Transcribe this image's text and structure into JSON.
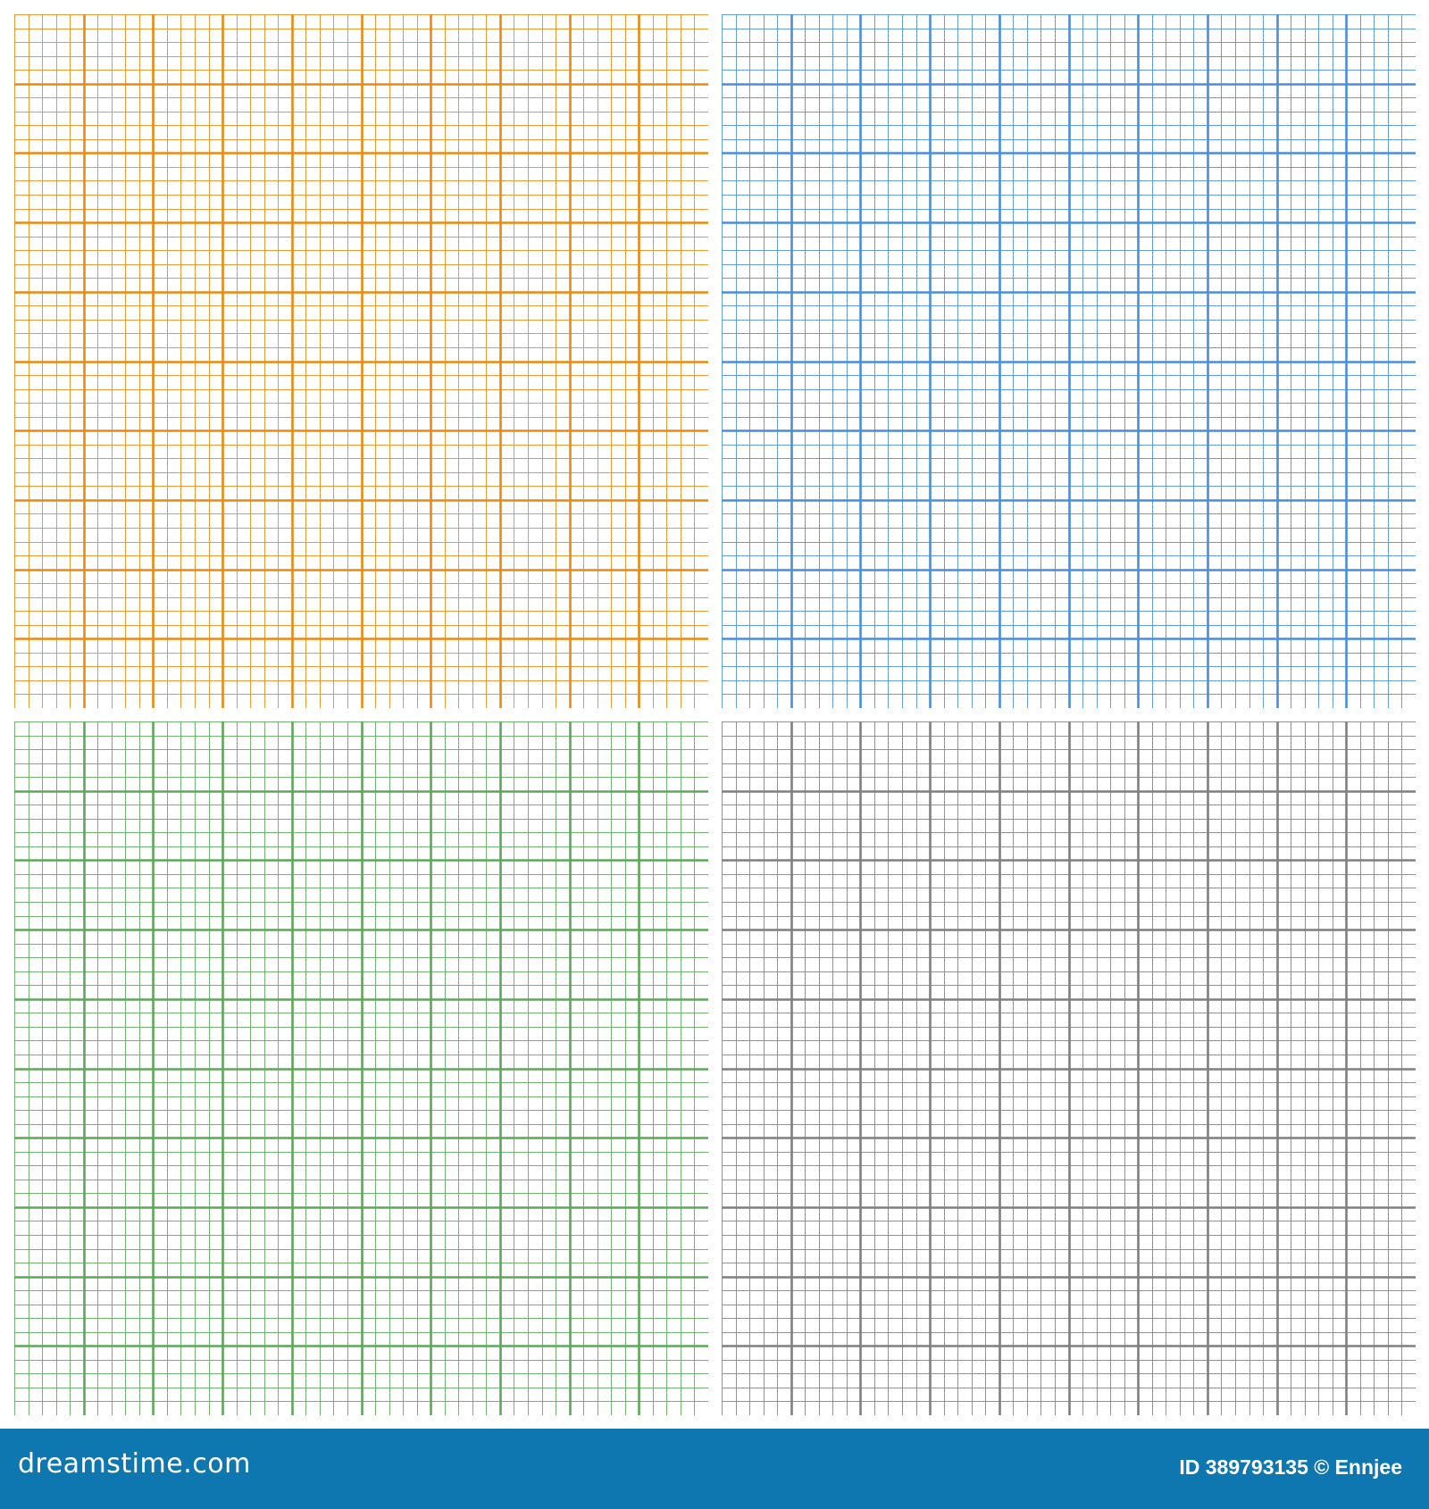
{
  "grids": [
    {
      "name": "orange",
      "color": "#e88a12"
    },
    {
      "name": "blue",
      "color": "#4a8ed8"
    },
    {
      "name": "green",
      "color": "#5ea65a"
    },
    {
      "name": "gray",
      "color": "#7f7f7f"
    }
  ],
  "grid_spec": {
    "major_divisions": 10,
    "minor_per_major": 5
  },
  "footer": {
    "logo": "dreamstime.com",
    "credit": "ID 389793135 © Ennjee",
    "background": "#0f77b0"
  }
}
